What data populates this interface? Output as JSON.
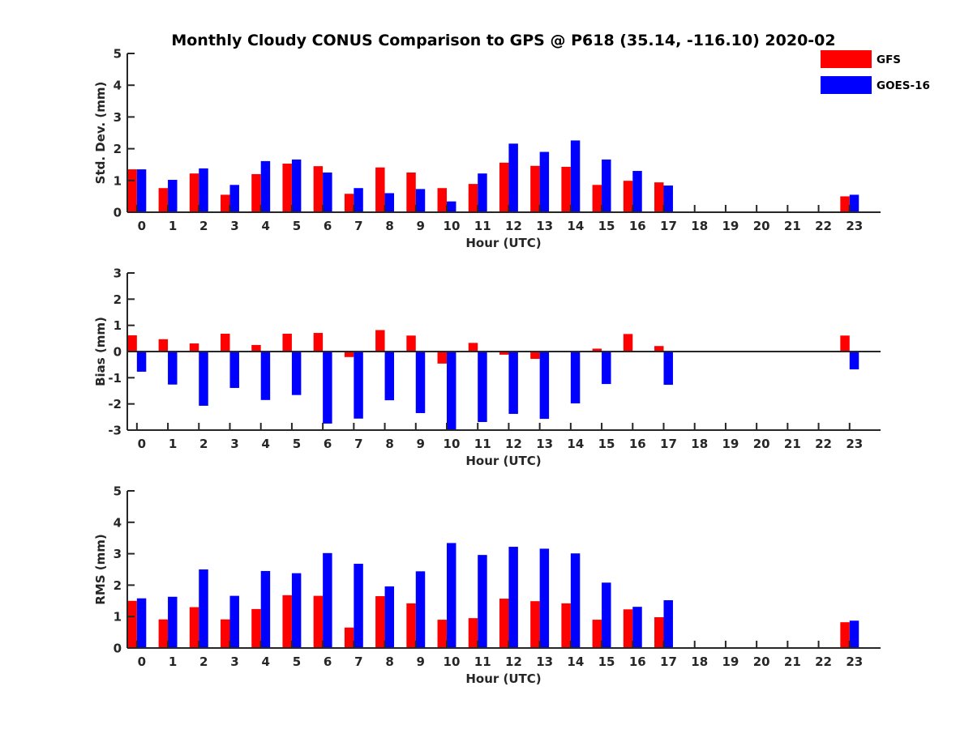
{
  "chart_data": {
    "title": "Monthly Cloudy CONUS Comparison to GPS @ P618 (35.14, -116.10) 2020-02",
    "type": "bar",
    "legend": {
      "placement": "top-right",
      "entries": [
        {
          "name": "GFS",
          "color": "#ff0000"
        },
        {
          "name": "GOES-16",
          "color": "#0000ff"
        }
      ]
    },
    "categories": [
      "0",
      "1",
      "2",
      "3",
      "4",
      "5",
      "6",
      "7",
      "8",
      "9",
      "10",
      "11",
      "12",
      "13",
      "14",
      "15",
      "16",
      "17",
      "18",
      "19",
      "20",
      "21",
      "22",
      "23"
    ],
    "panels": [
      {
        "id": "stddev",
        "ylabel": "Std. Dev. (mm)",
        "xlabel": "Hour (UTC)",
        "ylim": [
          0,
          5
        ],
        "yticks": [
          0,
          1,
          2,
          3,
          4,
          5
        ],
        "zero_line": false,
        "series": [
          {
            "name": "GFS",
            "color": "#ff0000",
            "values": [
              1.35,
              0.76,
              1.22,
              0.55,
              1.2,
              1.53,
              1.45,
              0.58,
              1.41,
              1.25,
              0.76,
              0.89,
              1.56,
              1.46,
              1.43,
              0.86,
              0.99,
              0.94,
              null,
              null,
              null,
              null,
              null,
              0.5
            ]
          },
          {
            "name": "GOES-16",
            "color": "#0000ff",
            "values": [
              1.35,
              1.02,
              1.38,
              0.86,
              1.61,
              1.66,
              1.25,
              0.76,
              0.6,
              0.73,
              0.34,
              1.22,
              2.16,
              1.9,
              2.26,
              1.66,
              1.3,
              0.84,
              null,
              null,
              null,
              null,
              null,
              0.55
            ]
          }
        ]
      },
      {
        "id": "bias",
        "ylabel": "Bias (mm)",
        "xlabel": "Hour (UTC)",
        "ylim": [
          -3,
          3
        ],
        "yticks": [
          -3,
          -2,
          -1,
          0,
          1,
          2,
          3
        ],
        "zero_line": true,
        "series": [
          {
            "name": "GFS",
            "color": "#ff0000",
            "values": [
              0.62,
              0.47,
              0.31,
              0.68,
              0.25,
              0.68,
              0.71,
              -0.21,
              0.82,
              0.61,
              -0.46,
              0.33,
              -0.12,
              -0.28,
              0.03,
              0.11,
              0.67,
              0.21,
              null,
              null,
              null,
              null,
              null,
              0.61
            ]
          },
          {
            "name": "GOES-16",
            "color": "#0000ff",
            "values": [
              -0.77,
              -1.26,
              -2.07,
              -1.39,
              -1.85,
              -1.66,
              -2.75,
              -2.56,
              -1.86,
              -2.35,
              -3.0,
              -2.69,
              -2.38,
              -2.57,
              -1.98,
              -1.24,
              0.0,
              -1.27,
              null,
              null,
              null,
              null,
              null,
              -0.68
            ]
          }
        ]
      },
      {
        "id": "rms",
        "ylabel": "RMS (mm)",
        "xlabel": "Hour (UTC)",
        "ylim": [
          0,
          5
        ],
        "yticks": [
          0,
          1,
          2,
          3,
          4,
          5
        ],
        "zero_line": false,
        "series": [
          {
            "name": "GFS",
            "color": "#ff0000",
            "values": [
              1.5,
              0.91,
              1.3,
              0.91,
              1.24,
              1.68,
              1.66,
              0.65,
              1.65,
              1.42,
              0.9,
              0.95,
              1.57,
              1.49,
              1.42,
              0.9,
              1.23,
              0.98,
              null,
              null,
              null,
              null,
              null,
              0.82
            ]
          },
          {
            "name": "GOES-16",
            "color": "#0000ff",
            "values": [
              1.58,
              1.63,
              2.5,
              1.66,
              2.45,
              2.38,
              3.02,
              2.68,
              1.96,
              2.44,
              3.34,
              2.96,
              3.22,
              3.16,
              3.01,
              2.08,
              1.31,
              1.52,
              null,
              null,
              null,
              null,
              null,
              0.87
            ]
          }
        ]
      }
    ],
    "xlim": [
      -0.31,
      24.0
    ],
    "grid": false
  }
}
